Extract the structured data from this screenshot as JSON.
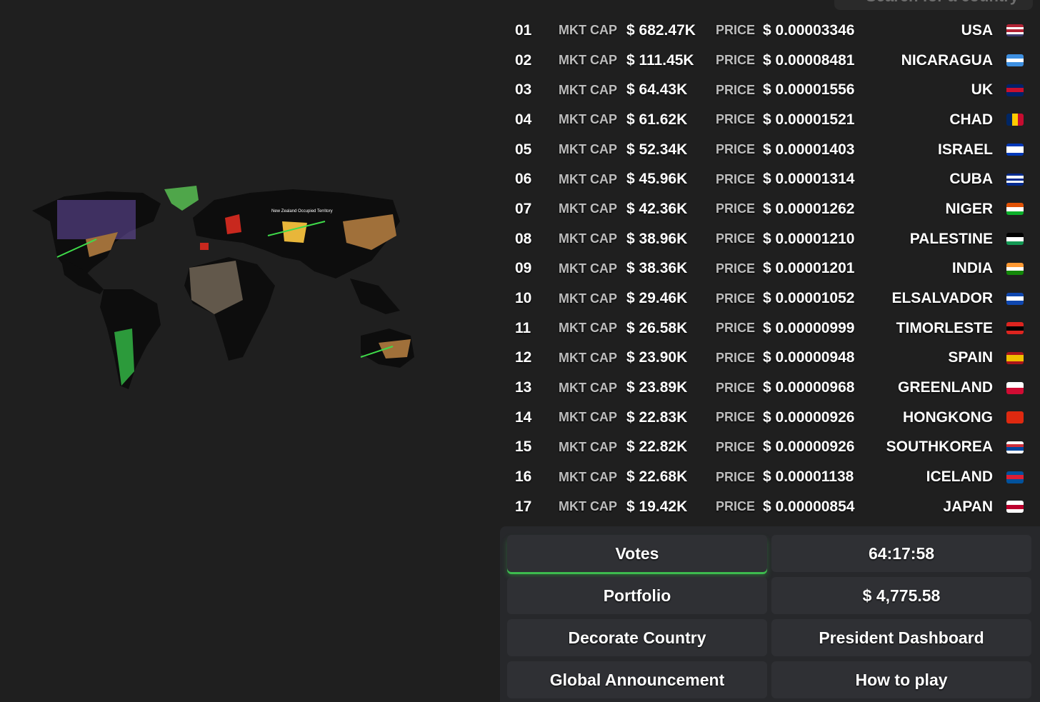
{
  "search": {
    "placeholder": "Search for a country"
  },
  "map": {
    "label": "New Zealand Occupied Territory",
    "land_color": "#0d0d0d",
    "accent_line": "#3fdc4a"
  },
  "labels": {
    "mkt_cap": "MKT CAP",
    "price": "PRICE"
  },
  "rows": [
    {
      "rank": "01",
      "mkt_cap": "$ 682.47K",
      "price": "$ 0.00003346",
      "country": "USA",
      "flag": [
        "#b22234",
        "#ffffff",
        "#b22234",
        "#ffffff",
        "#3c3b6e"
      ],
      "flag_dir": "h"
    },
    {
      "rank": "02",
      "mkt_cap": "$ 111.45K",
      "price": "$ 0.00008481",
      "country": "NICARAGUA",
      "flag": [
        "#3d8fe0",
        "#ffffff",
        "#3d8fe0"
      ],
      "flag_dir": "h"
    },
    {
      "rank": "03",
      "mkt_cap": "$ 64.43K",
      "price": "$ 0.00001556",
      "country": "UK",
      "flag": [
        "#012169",
        "#c8102e",
        "#012169"
      ],
      "flag_dir": "h"
    },
    {
      "rank": "04",
      "mkt_cap": "$ 61.62K",
      "price": "$ 0.00001521",
      "country": "CHAD",
      "flag": [
        "#002664",
        "#fecb00",
        "#c60c30"
      ],
      "flag_dir": "v"
    },
    {
      "rank": "05",
      "mkt_cap": "$ 52.34K",
      "price": "$ 0.00001403",
      "country": "ISRAEL",
      "flag": [
        "#0038b8",
        "#ffffff",
        "#ffffff",
        "#0038b8"
      ],
      "flag_dir": "h"
    },
    {
      "rank": "06",
      "mkt_cap": "$ 45.96K",
      "price": "$ 0.00001314",
      "country": "CUBA",
      "flag": [
        "#002a8f",
        "#ffffff",
        "#002a8f",
        "#ffffff",
        "#002a8f"
      ],
      "flag_dir": "h"
    },
    {
      "rank": "07",
      "mkt_cap": "$ 42.36K",
      "price": "$ 0.00001262",
      "country": "NIGER",
      "flag": [
        "#e05206",
        "#ffffff",
        "#0db02b"
      ],
      "flag_dir": "h"
    },
    {
      "rank": "08",
      "mkt_cap": "$ 38.96K",
      "price": "$ 0.00001210",
      "country": "PALESTINE",
      "flag": [
        "#000000",
        "#ffffff",
        "#149954"
      ],
      "flag_dir": "h"
    },
    {
      "rank": "09",
      "mkt_cap": "$ 38.36K",
      "price": "$ 0.00001201",
      "country": "INDIA",
      "flag": [
        "#ff9933",
        "#ffffff",
        "#138808"
      ],
      "flag_dir": "h"
    },
    {
      "rank": "10",
      "mkt_cap": "$ 29.46K",
      "price": "$ 0.00001052",
      "country": "ELSALVADOR",
      "flag": [
        "#0f47af",
        "#ffffff",
        "#0f47af"
      ],
      "flag_dir": "h"
    },
    {
      "rank": "11",
      "mkt_cap": "$ 26.58K",
      "price": "$ 0.00000999",
      "country": "TIMORLESTE",
      "flag": [
        "#dc241f",
        "#000000",
        "#dc241f"
      ],
      "flag_dir": "h"
    },
    {
      "rank": "12",
      "mkt_cap": "$ 23.90K",
      "price": "$ 0.00000948",
      "country": "SPAIN",
      "flag": [
        "#aa151b",
        "#f1bf00",
        "#f1bf00",
        "#aa151b"
      ],
      "flag_dir": "h"
    },
    {
      "rank": "13",
      "mkt_cap": "$ 23.89K",
      "price": "$ 0.00000968",
      "country": "GREENLAND",
      "flag": [
        "#ffffff",
        "#d00c33"
      ],
      "flag_dir": "h"
    },
    {
      "rank": "14",
      "mkt_cap": "$ 22.83K",
      "price": "$ 0.00000926",
      "country": "HONGKONG",
      "flag": [
        "#de2910",
        "#de2910"
      ],
      "flag_dir": "h"
    },
    {
      "rank": "15",
      "mkt_cap": "$ 22.82K",
      "price": "$ 0.00000926",
      "country": "SOUTHKOREA",
      "flag": [
        "#ffffff",
        "#cd2e3a",
        "#0047a0",
        "#ffffff"
      ],
      "flag_dir": "h"
    },
    {
      "rank": "16",
      "mkt_cap": "$ 22.68K",
      "price": "$ 0.00001138",
      "country": "ICELAND",
      "flag": [
        "#02529c",
        "#dc1e35",
        "#02529c"
      ],
      "flag_dir": "h"
    },
    {
      "rank": "17",
      "mkt_cap": "$ 19.42K",
      "price": "$ 0.00000854",
      "country": "JAPAN",
      "flag": [
        "#ffffff",
        "#bc002d",
        "#ffffff"
      ],
      "flag_dir": "h"
    }
  ],
  "buttons": [
    {
      "label": "Votes",
      "name": "votes-button",
      "active": true
    },
    {
      "label": "64:17:58",
      "name": "countdown-timer",
      "active": false
    },
    {
      "label": "Portfolio",
      "name": "portfolio-button",
      "active": false
    },
    {
      "label": "$ 4,775.58",
      "name": "portfolio-value",
      "active": false
    },
    {
      "label": "Decorate Country",
      "name": "decorate-country-button",
      "active": false
    },
    {
      "label": "President Dashboard",
      "name": "president-dashboard-button",
      "active": false
    },
    {
      "label": "Global Announcement",
      "name": "global-announcement-button",
      "active": false
    },
    {
      "label": "How to play",
      "name": "how-to-play-button",
      "active": false
    }
  ],
  "colors": {
    "background": "#1f1f1f",
    "panel": "#27282b",
    "button": "#2f3034",
    "active_glow": "#3dbb4e"
  }
}
